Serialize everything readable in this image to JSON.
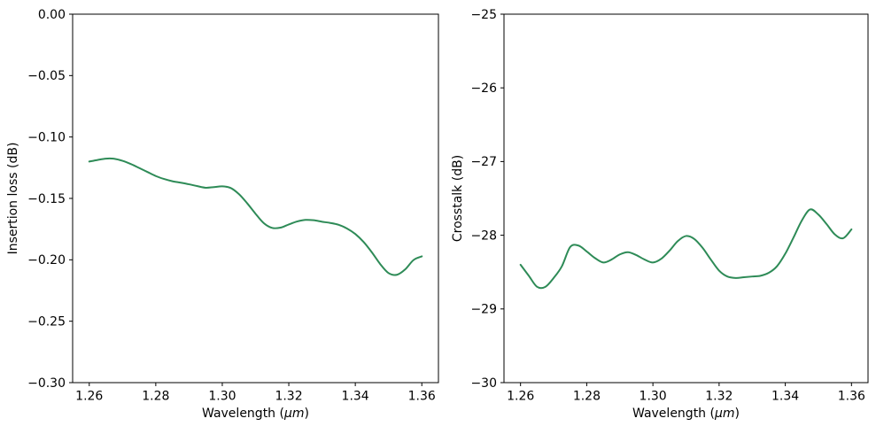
{
  "figure": {
    "background": "#ffffff",
    "line_color": "#2e8b57",
    "text_color": "#000000"
  },
  "chart_data": [
    {
      "type": "line",
      "name": "insertion-loss",
      "title": "",
      "xlabel": "Wavelength (μm)",
      "ylabel": "Insertion loss (dB)",
      "xlim": [
        1.255,
        1.365
      ],
      "ylim": [
        -0.3,
        0.0
      ],
      "grid": false,
      "legend": "none",
      "line_color": "#2e8b57",
      "xticks": {
        "values": [
          1.26,
          1.28,
          1.3,
          1.32,
          1.34,
          1.36
        ],
        "labels": [
          "1.26",
          "1.28",
          "1.30",
          "1.32",
          "1.34",
          "1.36"
        ]
      },
      "yticks": {
        "values": [
          0.0,
          -0.05,
          -0.1,
          -0.15,
          -0.2,
          -0.25,
          -0.3
        ],
        "labels": [
          "0.00",
          "−0.05",
          "−0.10",
          "−0.15",
          "−0.20",
          "−0.25",
          "−0.30"
        ]
      },
      "x": [
        1.26,
        1.2625,
        1.265,
        1.2675,
        1.27,
        1.2725,
        1.275,
        1.2775,
        1.28,
        1.2825,
        1.285,
        1.2875,
        1.29,
        1.2925,
        1.295,
        1.2975,
        1.3,
        1.3025,
        1.305,
        1.3075,
        1.31,
        1.3125,
        1.315,
        1.3175,
        1.32,
        1.3225,
        1.325,
        1.3275,
        1.33,
        1.3325,
        1.335,
        1.3375,
        1.34,
        1.3425,
        1.345,
        1.3475,
        1.35,
        1.3525,
        1.355,
        1.3575,
        1.36
      ],
      "y": [
        -0.12,
        -0.1187,
        -0.1176,
        -0.1177,
        -0.1194,
        -0.122,
        -0.1252,
        -0.1285,
        -0.1318,
        -0.1342,
        -0.136,
        -0.1372,
        -0.1385,
        -0.14,
        -0.1413,
        -0.1408,
        -0.1402,
        -0.1415,
        -0.1465,
        -0.154,
        -0.1625,
        -0.1702,
        -0.174,
        -0.1738,
        -0.1712,
        -0.1688,
        -0.1675,
        -0.1678,
        -0.169,
        -0.17,
        -0.1715,
        -0.1745,
        -0.179,
        -0.1855,
        -0.194,
        -0.2035,
        -0.2108,
        -0.2122,
        -0.2078,
        -0.2002,
        -0.1972
      ]
    },
    {
      "type": "line",
      "name": "crosstalk",
      "title": "",
      "xlabel": "Wavelength (μm)",
      "ylabel": "Crosstalk (dB)",
      "xlim": [
        1.255,
        1.365
      ],
      "ylim": [
        -30,
        -25
      ],
      "grid": false,
      "legend": "none",
      "line_color": "#2e8b57",
      "xticks": {
        "values": [
          1.26,
          1.28,
          1.3,
          1.32,
          1.34,
          1.36
        ],
        "labels": [
          "1.26",
          "1.28",
          "1.30",
          "1.32",
          "1.34",
          "1.36"
        ]
      },
      "yticks": {
        "values": [
          -25,
          -26,
          -27,
          -28,
          -29,
          -30
        ],
        "labels": [
          "−25",
          "−26",
          "−27",
          "−28",
          "−29",
          "−30"
        ]
      },
      "x": [
        1.26,
        1.2625,
        1.265,
        1.2675,
        1.27,
        1.2725,
        1.275,
        1.2775,
        1.28,
        1.2825,
        1.285,
        1.2875,
        1.29,
        1.2925,
        1.295,
        1.2975,
        1.3,
        1.3025,
        1.305,
        1.3075,
        1.31,
        1.3125,
        1.315,
        1.3175,
        1.32,
        1.3225,
        1.325,
        1.3275,
        1.33,
        1.3325,
        1.335,
        1.3375,
        1.34,
        1.3425,
        1.345,
        1.3475,
        1.35,
        1.3525,
        1.355,
        1.3575,
        1.36
      ],
      "y": [
        -28.4,
        -28.55,
        -28.7,
        -28.7,
        -28.58,
        -28.42,
        -28.16,
        -28.14,
        -28.22,
        -28.31,
        -28.37,
        -28.33,
        -28.26,
        -28.23,
        -28.27,
        -28.33,
        -28.37,
        -28.32,
        -28.21,
        -28.08,
        -28.01,
        -28.05,
        -28.17,
        -28.33,
        -28.48,
        -28.56,
        -28.58,
        -28.57,
        -28.56,
        -28.55,
        -28.51,
        -28.42,
        -28.25,
        -28.03,
        -27.8,
        -27.65,
        -27.72,
        -27.85,
        -27.99,
        -28.04,
        -27.92
      ]
    }
  ]
}
